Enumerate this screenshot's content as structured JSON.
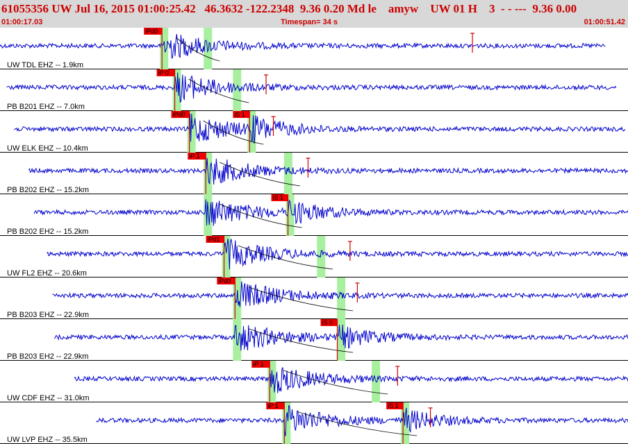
{
  "header": {
    "event_line": "61055356 UW Jul 16, 2015 01:00:25.42   46.3632 -122.2348  9.36 0.20 Md le    amyw    UW 01 H    3  - - ---  9.36 0.00",
    "time_start": "01:00:17.03",
    "timespan": "Timespan=  34 s",
    "time_end": "01:00:51.42"
  },
  "colors": {
    "header_bg": "#d8d8d8",
    "header_text": "#cc0000",
    "trace": "#0000cc",
    "pick_box": "#ee0000",
    "pick_line": "#cc0000",
    "window": "#a8f0a0",
    "divider": "#000000"
  },
  "traces": [
    {
      "label": "UW TDL EHZ -- 1.9km",
      "p_pick": "iPd0",
      "p_time": 25.9,
      "s_pick": "",
      "s_time": null,
      "start": 17.03,
      "end": 50.2,
      "windows": [
        25.9,
        28.3
      ],
      "amp_marker": 42.9
    },
    {
      "label": "PB B201 EHZ -- 7.0km",
      "p_pick": "iP 0",
      "p_time": 26.6,
      "s_pick": "",
      "s_time": null,
      "start": 17.4,
      "end": 50.8,
      "windows": [
        26.6,
        29.9
      ],
      "amp_marker": 31.6
    },
    {
      "label": "UW ELK EHZ -- 10.4km",
      "p_pick": "iPd0",
      "p_time": 27.4,
      "s_pick": "iS 1",
      "s_time": 30.7,
      "start": 17.8,
      "end": 51.3,
      "windows": [
        27.4,
        30.7
      ],
      "amp_marker": 32.0
    },
    {
      "label": "PB B202 EHZ -- 15.2km",
      "p_pick": "iP 1",
      "p_time": 28.3,
      "s_pick": "",
      "s_time": null,
      "start": 18.6,
      "end": 52.2,
      "windows": [
        28.3,
        32.7
      ],
      "amp_marker": 33.9
    },
    {
      "label": "PB B202 EH2 -- 15.2km",
      "p_pick": "",
      "p_time": null,
      "s_pick": "iS 1",
      "s_time": 32.8,
      "start": 18.9,
      "end": 52.2,
      "windows": [
        28.3,
        32.8
      ],
      "amp_marker": null
    },
    {
      "label": "UW FL2 EHZ -- 20.6km",
      "p_pick": "iPd1",
      "p_time": 29.3,
      "s_pick": "",
      "s_time": null,
      "start": 19.6,
      "end": 53.2,
      "windows": [
        29.3,
        34.5
      ],
      "amp_marker": 36.2
    },
    {
      "label": "PB B203 EHZ -- 22.9km",
      "p_pick": "iPd0",
      "p_time": 29.9,
      "s_pick": "",
      "s_time": null,
      "start": 19.9,
      "end": 53.9,
      "windows": [
        29.9,
        35.6
      ],
      "amp_marker": 36.6
    },
    {
      "label": "PB B203 EH2 -- 22.9km",
      "p_pick": "",
      "p_time": null,
      "s_pick": "iS 0",
      "s_time": 35.5,
      "start": 20.0,
      "end": 53.9,
      "windows": [
        29.9,
        35.6
      ],
      "amp_marker": null
    },
    {
      "label": "UW CDF EHZ -- 31.0km",
      "p_pick": "iP 1",
      "p_time": 31.8,
      "s_pick": "",
      "s_time": null,
      "start": 21.1,
      "end": 55.1,
      "windows": [
        31.8,
        37.5
      ],
      "amp_marker": 38.8
    },
    {
      "label": "UW LVP EHZ -- 35.5km",
      "p_pick": "iP 1",
      "p_time": 32.6,
      "s_pick": "iS 1",
      "s_time": 39.1,
      "start": 22.3,
      "end": 56.5,
      "windows": [
        32.6,
        39.1
      ],
      "amp_marker": 40.6
    }
  ]
}
